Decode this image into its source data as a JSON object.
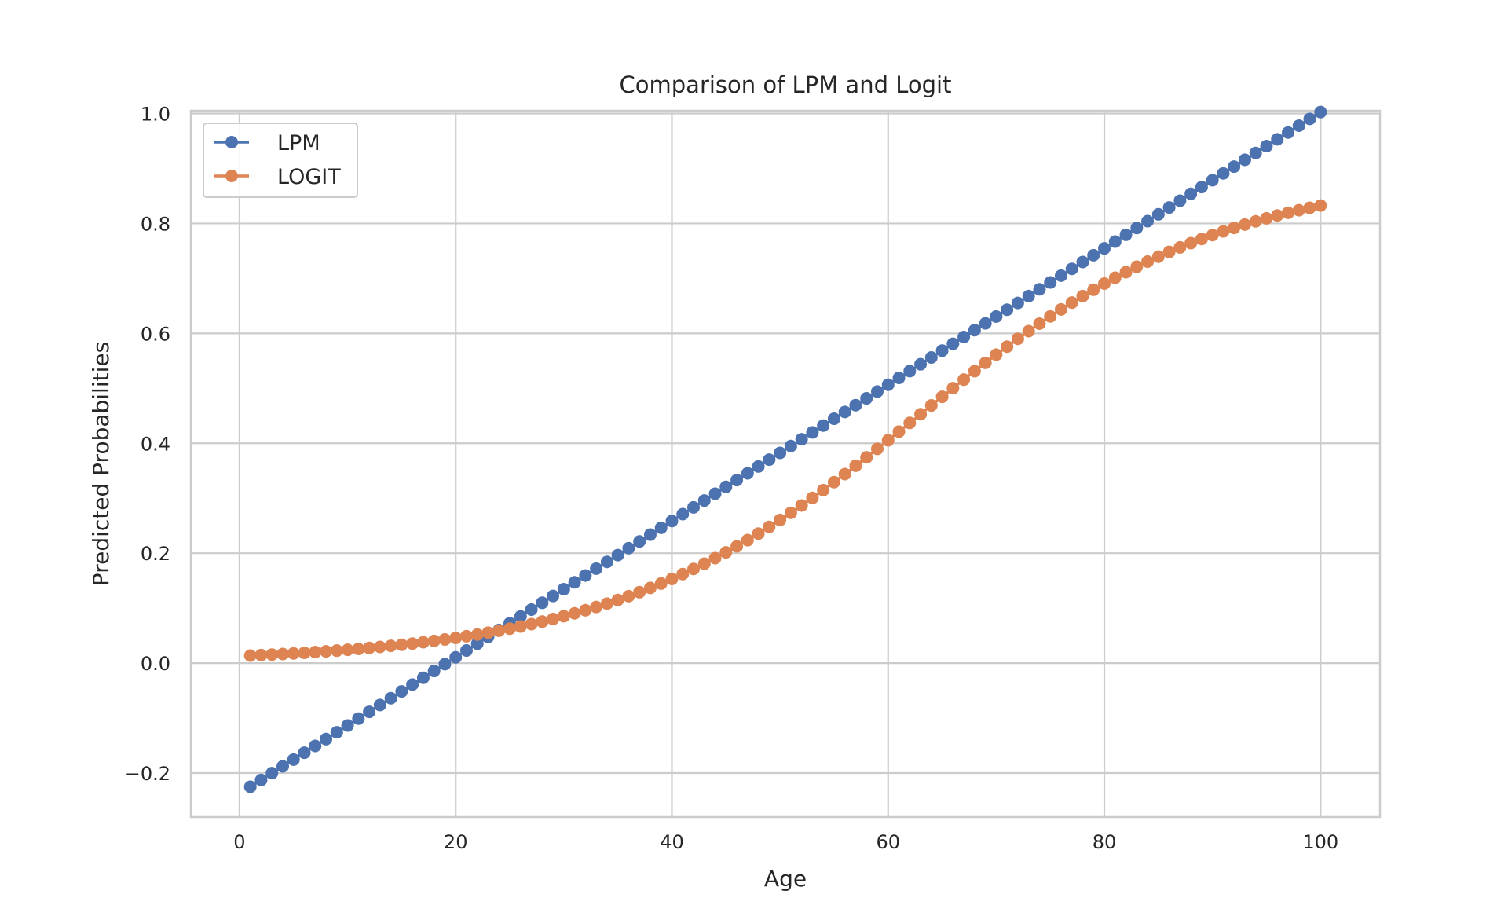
{
  "chart_data": {
    "type": "line",
    "title": "Comparison of LPM and Logit",
    "xlabel": "Age",
    "ylabel": "Predicted Probabilities",
    "xlim": [
      -4.5,
      105.5
    ],
    "ylim": [
      -0.28,
      1.005
    ],
    "xticks": [
      0,
      20,
      40,
      60,
      80,
      100
    ],
    "xtick_labels": [
      "0",
      "20",
      "40",
      "60",
      "80",
      "100"
    ],
    "yticks": [
      -0.2,
      0.0,
      0.2,
      0.4,
      0.6,
      0.8,
      1.0
    ],
    "ytick_labels": [
      "−0.2",
      "0.0",
      "0.2",
      "0.4",
      "0.6",
      "0.8",
      "1.0"
    ],
    "grid": true,
    "legend_position": "upper-left",
    "x": [
      1,
      2,
      3,
      4,
      5,
      6,
      7,
      8,
      9,
      10,
      11,
      12,
      13,
      14,
      15,
      16,
      17,
      18,
      19,
      20,
      21,
      22,
      23,
      24,
      25,
      26,
      27,
      28,
      29,
      30,
      31,
      32,
      33,
      34,
      35,
      36,
      37,
      38,
      39,
      40,
      41,
      42,
      43,
      44,
      45,
      46,
      47,
      48,
      49,
      50,
      51,
      52,
      53,
      54,
      55,
      56,
      57,
      58,
      59,
      60,
      61,
      62,
      63,
      64,
      65,
      66,
      67,
      68,
      69,
      70,
      71,
      72,
      73,
      74,
      75,
      76,
      77,
      78,
      79,
      80,
      81,
      82,
      83,
      84,
      85,
      86,
      87,
      88,
      89,
      90,
      91,
      92,
      93,
      94,
      95,
      96,
      97,
      98,
      99,
      100
    ],
    "series": [
      {
        "name": "LPM",
        "color": "#4c72b0",
        "marker": "circle",
        "values": [
          -0.225,
          -0.2126,
          -0.2002,
          -0.1878,
          -0.1754,
          -0.163,
          -0.1506,
          -0.1382,
          -0.1258,
          -0.1134,
          -0.101,
          -0.0886,
          -0.0762,
          -0.0638,
          -0.0514,
          -0.039,
          -0.0266,
          -0.0142,
          -0.0018,
          0.0106,
          0.023,
          0.0354,
          0.0478,
          0.0602,
          0.0726,
          0.085,
          0.0974,
          0.1098,
          0.1222,
          0.1346,
          0.147,
          0.1594,
          0.1718,
          0.1842,
          0.1966,
          0.209,
          0.2214,
          0.2338,
          0.2462,
          0.2586,
          0.271,
          0.2834,
          0.2958,
          0.3082,
          0.3206,
          0.333,
          0.3454,
          0.3578,
          0.3702,
          0.3826,
          0.395,
          0.4074,
          0.4198,
          0.4322,
          0.4446,
          0.457,
          0.4694,
          0.4818,
          0.4942,
          0.5066,
          0.519,
          0.5314,
          0.5438,
          0.5562,
          0.5686,
          0.581,
          0.5934,
          0.6058,
          0.6182,
          0.6306,
          0.643,
          0.6554,
          0.6678,
          0.6802,
          0.6926,
          0.705,
          0.7174,
          0.7298,
          0.7422,
          0.7546,
          0.767,
          0.7794,
          0.7918,
          0.8042,
          0.8166,
          0.829,
          0.8414,
          0.8538,
          0.8662,
          0.8786,
          0.891,
          0.9034,
          0.9158,
          0.9282,
          0.9406,
          0.953,
          0.9654,
          0.9778,
          0.9902,
          1.0026
        ]
      },
      {
        "name": "LOGIT",
        "color": "#dd8452",
        "marker": "circle",
        "values": [
          0.0137,
          0.0146,
          0.0156,
          0.0166,
          0.0177,
          0.0188,
          0.0201,
          0.0214,
          0.0228,
          0.0243,
          0.0259,
          0.0276,
          0.0295,
          0.0314,
          0.0334,
          0.0356,
          0.038,
          0.0404,
          0.0431,
          0.0459,
          0.0489,
          0.052,
          0.0554,
          0.059,
          0.0627,
          0.0667,
          0.071,
          0.0755,
          0.0802,
          0.0853,
          0.0906,
          0.0962,
          0.1021,
          0.1083,
          0.1149,
          0.1219,
          0.1291,
          0.1368,
          0.1448,
          0.1532,
          0.162,
          0.1713,
          0.1809,
          0.191,
          0.2015,
          0.2124,
          0.2238,
          0.2356,
          0.2478,
          0.2604,
          0.2734,
          0.2868,
          0.3006,
          0.3148,
          0.3293,
          0.344,
          0.3591,
          0.3744,
          0.3899,
          0.4055,
          0.4213,
          0.4371,
          0.453,
          0.4689,
          0.4846,
          0.5003,
          0.5159,
          0.5313,
          0.5464,
          0.5613,
          0.5759,
          0.5902,
          0.6041,
          0.6177,
          0.6309,
          0.6436,
          0.656,
          0.6679,
          0.6794,
          0.6905,
          0.7012,
          0.7114,
          0.7212,
          0.7306,
          0.7396,
          0.7482,
          0.7564,
          0.7642,
          0.7717,
          0.7788,
          0.7855,
          0.7919,
          0.798,
          0.8038,
          0.8093,
          0.8145,
          0.8194,
          0.824,
          0.8284,
          0.8326
        ]
      }
    ]
  }
}
